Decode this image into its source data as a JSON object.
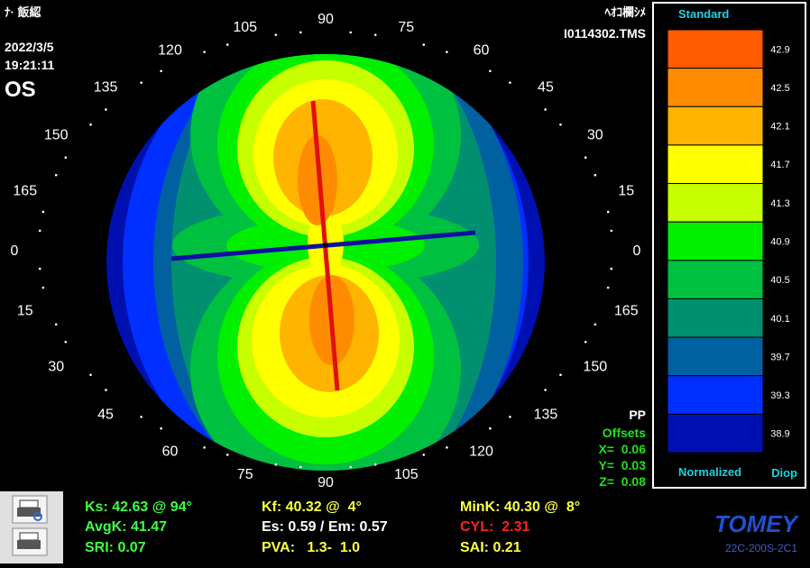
{
  "header": {
    "patient": "ﾅ· 飯綛",
    "date": "2022/3/5",
    "time": "19:21:11",
    "eye": "OS",
    "name": "ﾍｵｺ欄ｼﾒ",
    "file": "I0114302.TMS"
  },
  "angle_labels": [
    "90",
    "105",
    "120",
    "135",
    "150",
    "165",
    "0",
    "15",
    "30",
    "45",
    "60",
    "75",
    "90",
    "105",
    "120",
    "135",
    "150",
    "165",
    "0",
    "15",
    "30",
    "45",
    "60",
    "75"
  ],
  "offsets": {
    "mode": "PP",
    "title": "Offsets",
    "x": "X=  0.06",
    "y": "Y=  0.03",
    "z": "Z=  0.08"
  },
  "scale": {
    "title": "Standard",
    "footer_left": "Normalized",
    "footer_right": "Diop",
    "values": [
      "42.9",
      "42.5",
      "42.1",
      "41.7",
      "41.3",
      "40.9",
      "40.5",
      "40.1",
      "39.7",
      "39.3",
      "38.9"
    ],
    "colors": [
      "#ff5a00",
      "#ff8c00",
      "#ffb400",
      "#ffff00",
      "#c8ff00",
      "#00f000",
      "#00c040",
      "#009070",
      "#0060a0",
      "#0030ff",
      "#0010b0"
    ]
  },
  "stats": {
    "ks": "Ks: 42.63 @ 94°",
    "avgk": "AvgK: 41.47",
    "sri": "SRI: 0.07",
    "kf": "Kf: 40.32 @  4°",
    "es": "Es: 0.59 / Em: 0.57",
    "pva": "PVA:   1.3-  1.0",
    "mink": "MinK: 40.30 @  8°",
    "cyl": "CYL:  2.31",
    "sai": "SAI: 0.21"
  },
  "brand": {
    "logo": "TOMEY",
    "model": "22C-200S-2C1"
  }
}
